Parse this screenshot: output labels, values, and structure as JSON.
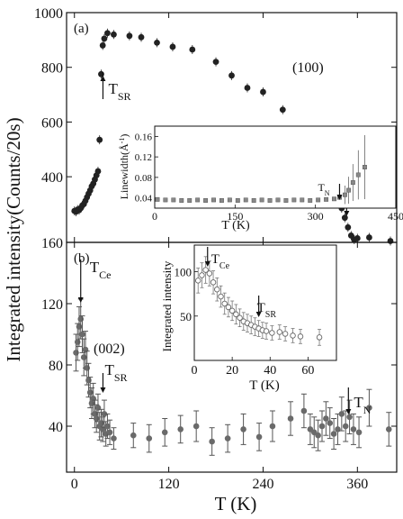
{
  "figure": {
    "ylabel": "Integrated intensity(Counts/20s)",
    "xlabel": "T (K)"
  },
  "chart_data": [
    {
      "panel": "a",
      "type": "scatter",
      "panel_label": "(a)",
      "reflection": "(100)",
      "xlim": [
        -10,
        410
      ],
      "ylim": [
        160,
        1000
      ],
      "x_ticks": [
        0,
        120,
        240,
        360
      ],
      "y_ticks": [
        160,
        400,
        600,
        800,
        1000
      ],
      "y_tick_labels": [
        "160",
        "400",
        "600",
        "800",
        "1000"
      ],
      "points": [
        {
          "x": 0,
          "y": 275
        },
        {
          "x": 2,
          "y": 272
        },
        {
          "x": 4,
          "y": 280
        },
        {
          "x": 6,
          "y": 278
        },
        {
          "x": 8,
          "y": 285
        },
        {
          "x": 10,
          "y": 295
        },
        {
          "x": 12,
          "y": 300
        },
        {
          "x": 14,
          "y": 312
        },
        {
          "x": 16,
          "y": 325
        },
        {
          "x": 18,
          "y": 338
        },
        {
          "x": 20,
          "y": 350
        },
        {
          "x": 22,
          "y": 365
        },
        {
          "x": 24,
          "y": 375
        },
        {
          "x": 26,
          "y": 390
        },
        {
          "x": 28,
          "y": 405
        },
        {
          "x": 30,
          "y": 420
        },
        {
          "x": 32,
          "y": 535
        },
        {
          "x": 34,
          "y": 775
        },
        {
          "x": 36,
          "y": 880
        },
        {
          "x": 38,
          "y": 905
        },
        {
          "x": 42,
          "y": 925
        },
        {
          "x": 50,
          "y": 920
        },
        {
          "x": 70,
          "y": 915
        },
        {
          "x": 85,
          "y": 910
        },
        {
          "x": 105,
          "y": 890
        },
        {
          "x": 125,
          "y": 875
        },
        {
          "x": 150,
          "y": 865
        },
        {
          "x": 180,
          "y": 820
        },
        {
          "x": 200,
          "y": 770
        },
        {
          "x": 220,
          "y": 725
        },
        {
          "x": 240,
          "y": 710
        },
        {
          "x": 265,
          "y": 645
        },
        {
          "x": 292,
          "y": 560
        },
        {
          "x": 296,
          "y": 555
        },
        {
          "x": 300,
          "y": 545
        },
        {
          "x": 304,
          "y": 532
        },
        {
          "x": 308,
          "y": 515
        },
        {
          "x": 312,
          "y": 495
        },
        {
          "x": 316,
          "y": 470
        },
        {
          "x": 320,
          "y": 445
        },
        {
          "x": 324,
          "y": 420
        },
        {
          "x": 328,
          "y": 390
        },
        {
          "x": 332,
          "y": 355
        },
        {
          "x": 336,
          "y": 320
        },
        {
          "x": 340,
          "y": 285
        },
        {
          "x": 344,
          "y": 250
        },
        {
          "x": 348,
          "y": 215
        },
        {
          "x": 352,
          "y": 185
        },
        {
          "x": 356,
          "y": 170
        },
        {
          "x": 360,
          "y": 175
        },
        {
          "x": 375,
          "y": 178
        },
        {
          "x": 402,
          "y": 165
        }
      ],
      "annotations": [
        {
          "text": "T",
          "sub": "SR",
          "x": 34
        },
        {
          "text": "T",
          "sub": "N",
          "x": 344
        }
      ],
      "inset": {
        "type": "scatter",
        "ylabel": "Linewidth(Å",
        "ylabel_sup": "-1",
        "ylabel_end": ")",
        "xlabel": "T (K)",
        "xlim": [
          0,
          450
        ],
        "ylim": [
          0.02,
          0.18
        ],
        "x_ticks": [
          0,
          150,
          300,
          450
        ],
        "y_ticks": [
          0.04,
          0.08,
          0.12,
          0.16
        ],
        "y_tick_labels": [
          "0.04",
          "0.08",
          "0.12",
          "0.16"
        ],
        "points": [
          {
            "x": 5,
            "y": 0.037
          },
          {
            "x": 20,
            "y": 0.036
          },
          {
            "x": 35,
            "y": 0.036
          },
          {
            "x": 50,
            "y": 0.035
          },
          {
            "x": 65,
            "y": 0.035
          },
          {
            "x": 80,
            "y": 0.036
          },
          {
            "x": 95,
            "y": 0.035
          },
          {
            "x": 110,
            "y": 0.036
          },
          {
            "x": 125,
            "y": 0.035
          },
          {
            "x": 140,
            "y": 0.036
          },
          {
            "x": 155,
            "y": 0.035
          },
          {
            "x": 170,
            "y": 0.036
          },
          {
            "x": 185,
            "y": 0.035
          },
          {
            "x": 200,
            "y": 0.036
          },
          {
            "x": 215,
            "y": 0.035
          },
          {
            "x": 230,
            "y": 0.036
          },
          {
            "x": 245,
            "y": 0.035
          },
          {
            "x": 260,
            "y": 0.036
          },
          {
            "x": 275,
            "y": 0.036
          },
          {
            "x": 290,
            "y": 0.035
          },
          {
            "x": 305,
            "y": 0.036
          },
          {
            "x": 320,
            "y": 0.037
          },
          {
            "x": 335,
            "y": 0.038
          },
          {
            "x": 345,
            "y": 0.041
          },
          {
            "x": 355,
            "y": 0.046
          },
          {
            "x": 362,
            "y": 0.055
          },
          {
            "x": 370,
            "y": 0.07
          },
          {
            "x": 380,
            "y": 0.085
          },
          {
            "x": 392,
            "y": 0.1
          }
        ],
        "annotation": {
          "text": "T",
          "sub": "N",
          "x": 345
        }
      }
    },
    {
      "panel": "b",
      "type": "scatter",
      "panel_label": "(b)",
      "reflection": "(002)",
      "xlim": [
        -10,
        410
      ],
      "ylim": [
        10,
        160
      ],
      "x_ticks": [
        0,
        120,
        240,
        360
      ],
      "y_ticks": [
        40,
        80,
        120
      ],
      "y_tick_labels": [
        "40",
        "80",
        "120"
      ],
      "points": [
        {
          "x": 2,
          "y": 88,
          "err": 12
        },
        {
          "x": 4,
          "y": 95,
          "err": 12
        },
        {
          "x": 6,
          "y": 105,
          "err": 13
        },
        {
          "x": 8,
          "y": 110,
          "err": 13
        },
        {
          "x": 10,
          "y": 100,
          "err": 12
        },
        {
          "x": 12,
          "y": 85,
          "err": 12
        },
        {
          "x": 14,
          "y": 90,
          "err": 12
        },
        {
          "x": 16,
          "y": 78,
          "err": 11
        },
        {
          "x": 18,
          "y": 70,
          "err": 11
        },
        {
          "x": 20,
          "y": 62,
          "err": 10
        },
        {
          "x": 22,
          "y": 55,
          "err": 10
        },
        {
          "x": 24,
          "y": 58,
          "err": 10
        },
        {
          "x": 26,
          "y": 48,
          "err": 9
        },
        {
          "x": 28,
          "y": 45,
          "err": 9
        },
        {
          "x": 30,
          "y": 52,
          "err": 9
        },
        {
          "x": 32,
          "y": 40,
          "err": 9
        },
        {
          "x": 34,
          "y": 42,
          "err": 9
        },
        {
          "x": 36,
          "y": 38,
          "err": 8
        },
        {
          "x": 38,
          "y": 48,
          "err": 9
        },
        {
          "x": 40,
          "y": 35,
          "err": 8
        },
        {
          "x": 42,
          "y": 40,
          "err": 8
        },
        {
          "x": 45,
          "y": 36,
          "err": 8
        },
        {
          "x": 50,
          "y": 32,
          "err": 7
        },
        {
          "x": 75,
          "y": 34,
          "err": 8
        },
        {
          "x": 95,
          "y": 32,
          "err": 9
        },
        {
          "x": 115,
          "y": 36,
          "err": 9
        },
        {
          "x": 135,
          "y": 38,
          "err": 9
        },
        {
          "x": 155,
          "y": 40,
          "err": 10
        },
        {
          "x": 175,
          "y": 30,
          "err": 9
        },
        {
          "x": 195,
          "y": 32,
          "err": 9
        },
        {
          "x": 215,
          "y": 38,
          "err": 10
        },
        {
          "x": 235,
          "y": 33,
          "err": 9
        },
        {
          "x": 252,
          "y": 40,
          "err": 10
        },
        {
          "x": 275,
          "y": 45,
          "err": 11
        },
        {
          "x": 292,
          "y": 50,
          "err": 11
        },
        {
          "x": 300,
          "y": 38,
          "err": 10
        },
        {
          "x": 305,
          "y": 36,
          "err": 10
        },
        {
          "x": 310,
          "y": 34,
          "err": 10
        },
        {
          "x": 315,
          "y": 40,
          "err": 10
        },
        {
          "x": 320,
          "y": 45,
          "err": 11
        },
        {
          "x": 325,
          "y": 42,
          "err": 10
        },
        {
          "x": 330,
          "y": 35,
          "err": 10
        },
        {
          "x": 335,
          "y": 38,
          "err": 10
        },
        {
          "x": 340,
          "y": 48,
          "err": 11
        },
        {
          "x": 345,
          "y": 40,
          "err": 10
        },
        {
          "x": 350,
          "y": 46,
          "err": 11
        },
        {
          "x": 355,
          "y": 38,
          "err": 10
        },
        {
          "x": 362,
          "y": 36,
          "err": 10
        },
        {
          "x": 375,
          "y": 52,
          "err": 12
        },
        {
          "x": 400,
          "y": 38,
          "err": 11
        }
      ],
      "annotations": [
        {
          "text": "T",
          "sub": "Ce",
          "x": 8
        },
        {
          "text": "T",
          "sub": "SR",
          "x": 34
        },
        {
          "text": "T",
          "sub": "N",
          "x": 344
        }
      ],
      "inset": {
        "type": "scatter",
        "ylabel": "Integrated intensity",
        "xlabel": "T (K)",
        "xlim": [
          0,
          75
        ],
        "ylim": [
          0,
          130
        ],
        "x_ticks": [
          0,
          20,
          40,
          60
        ],
        "y_ticks": [
          50,
          100
        ],
        "y_tick_labels": [
          "50",
          "100"
        ],
        "points": [
          {
            "x": 2,
            "y": 90,
            "err": 14
          },
          {
            "x": 4,
            "y": 96,
            "err": 14
          },
          {
            "x": 6,
            "y": 102,
            "err": 15
          },
          {
            "x": 8,
            "y": 98,
            "err": 14
          },
          {
            "x": 10,
            "y": 88,
            "err": 13
          },
          {
            "x": 12,
            "y": 80,
            "err": 13
          },
          {
            "x": 14,
            "y": 72,
            "err": 12
          },
          {
            "x": 16,
            "y": 64,
            "err": 12
          },
          {
            "x": 18,
            "y": 60,
            "err": 11
          },
          {
            "x": 20,
            "y": 56,
            "err": 11
          },
          {
            "x": 22,
            "y": 52,
            "err": 11
          },
          {
            "x": 24,
            "y": 48,
            "err": 10
          },
          {
            "x": 26,
            "y": 44,
            "err": 10
          },
          {
            "x": 28,
            "y": 42,
            "err": 10
          },
          {
            "x": 30,
            "y": 40,
            "err": 10
          },
          {
            "x": 32,
            "y": 38,
            "err": 10
          },
          {
            "x": 34,
            "y": 36,
            "err": 9
          },
          {
            "x": 36,
            "y": 34,
            "err": 9
          },
          {
            "x": 38,
            "y": 33,
            "err": 9
          },
          {
            "x": 41,
            "y": 31,
            "err": 8
          },
          {
            "x": 45,
            "y": 32,
            "err": 8
          },
          {
            "x": 48,
            "y": 30,
            "err": 8
          },
          {
            "x": 52,
            "y": 28,
            "err": 8
          },
          {
            "x": 56,
            "y": 27,
            "err": 8
          },
          {
            "x": 66,
            "y": 26,
            "err": 9
          }
        ],
        "annotations": [
          {
            "text": "T",
            "sub": "Ce",
            "x": 7
          },
          {
            "text": "T",
            "sub": "SR",
            "x": 34
          }
        ]
      }
    }
  ]
}
